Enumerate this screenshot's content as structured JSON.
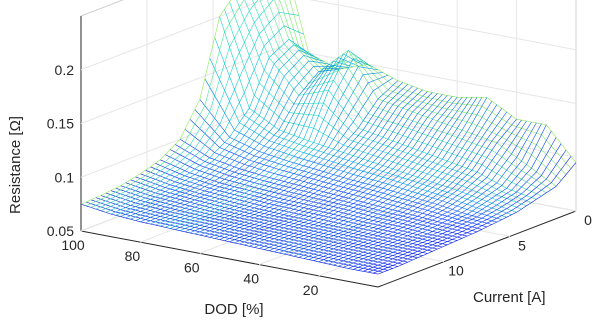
{
  "chart_data": {
    "type": "surface",
    "xlabel": "DOD [%]",
    "ylabel": "Current [A]",
    "zlabel": "Resistance [Ω]",
    "x_ticks": [
      "100",
      "80",
      "60",
      "40",
      "20"
    ],
    "y_ticks": [
      "0",
      "5",
      "10"
    ],
    "z_ticks": [
      "0.05",
      "0.1",
      "0.15",
      "0.2"
    ],
    "x_range": [
      0,
      100
    ],
    "y_range": [
      0,
      15
    ],
    "z_range": [
      0.05,
      0.25
    ],
    "grid": true,
    "colormap": [
      "#0000c8",
      "#0a32ff",
      "#00b4e6",
      "#28e6b4",
      "#f0f000"
    ],
    "dod_grid": [
      0,
      10,
      20,
      30,
      40,
      50,
      60,
      70,
      80,
      90,
      100
    ],
    "current_grid": [
      0,
      1.5,
      3,
      4.5,
      6,
      7.5,
      9,
      10.5,
      12,
      13.5,
      15
    ],
    "resistance": [
      [
        0.095,
        0.08,
        0.075,
        0.07,
        0.068,
        0.066,
        0.065,
        0.064,
        0.063,
        0.062,
        0.062
      ],
      [
        0.125,
        0.095,
        0.08,
        0.075,
        0.07,
        0.068,
        0.066,
        0.065,
        0.064,
        0.063,
        0.062
      ],
      [
        0.125,
        0.11,
        0.09,
        0.08,
        0.074,
        0.07,
        0.068,
        0.066,
        0.065,
        0.064,
        0.063
      ],
      [
        0.14,
        0.115,
        0.095,
        0.084,
        0.077,
        0.072,
        0.069,
        0.067,
        0.066,
        0.065,
        0.064
      ],
      [
        0.135,
        0.12,
        0.1,
        0.088,
        0.08,
        0.074,
        0.071,
        0.068,
        0.067,
        0.066,
        0.065
      ],
      [
        0.135,
        0.125,
        0.105,
        0.092,
        0.082,
        0.076,
        0.072,
        0.069,
        0.068,
        0.067,
        0.066
      ],
      [
        0.14,
        0.13,
        0.11,
        0.096,
        0.085,
        0.078,
        0.073,
        0.07,
        0.069,
        0.068,
        0.067
      ],
      [
        0.15,
        0.17,
        0.14,
        0.1,
        0.088,
        0.08,
        0.075,
        0.072,
        0.07,
        0.069,
        0.068
      ],
      [
        0.14,
        0.145,
        0.13,
        0.105,
        0.092,
        0.083,
        0.077,
        0.074,
        0.072,
        0.07,
        0.069
      ],
      [
        0.15,
        0.17,
        0.16,
        0.12,
        0.1,
        0.088,
        0.081,
        0.077,
        0.074,
        0.072,
        0.071
      ],
      [
        0.25,
        0.24,
        0.22,
        0.2,
        0.13,
        0.1,
        0.088,
        0.082,
        0.078,
        0.076,
        0.075
      ]
    ]
  }
}
